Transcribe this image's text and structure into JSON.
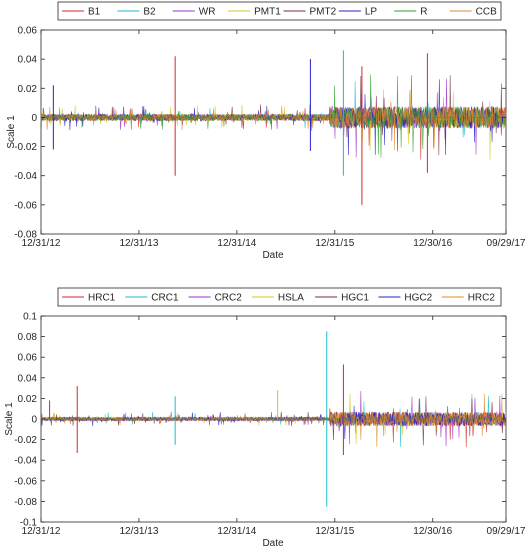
{
  "chart_data": [
    {
      "type": "line",
      "ylabel": "Scale 1",
      "xlabel": "Date",
      "ylim": [
        -0.08,
        0.06
      ],
      "yticks": [
        -0.08,
        -0.06,
        -0.04,
        -0.02,
        0,
        0.02,
        0.04,
        0.06
      ],
      "ytick_labels": [
        "-0.08",
        "-0.06",
        "-0.04",
        "-0.02",
        "0",
        "0.02",
        "0.04",
        "0.06"
      ],
      "xlim": [
        "12/31/12",
        "09/29/17"
      ],
      "xticks": [
        "12/31/12",
        "12/31/13",
        "12/31/14",
        "12/31/15",
        "12/30/16",
        "09/29/17"
      ],
      "legend_position": "top",
      "series": [
        {
          "name": "B1",
          "color": "#d62728"
        },
        {
          "name": "B2",
          "color": "#17becf"
        },
        {
          "name": "WR",
          "color": "#9b30c8"
        },
        {
          "name": "PMT1",
          "color": "#d4c61a"
        },
        {
          "name": "PMT2",
          "color": "#7a2a48"
        },
        {
          "name": "LP",
          "color": "#2424c8"
        },
        {
          "name": "R",
          "color": "#2ca02c"
        },
        {
          "name": "CCB",
          "color": "#e08a2a"
        }
      ],
      "spikes": [
        {
          "date": "05/15/14",
          "value": 0.042,
          "series": "B1"
        },
        {
          "date": "05/15/14",
          "value": -0.04,
          "series": "B1"
        },
        {
          "date": "10/01/15",
          "value": 0.04,
          "series": "LP"
        },
        {
          "date": "10/01/15",
          "value": -0.023,
          "series": "LP"
        },
        {
          "date": "02/01/16",
          "value": 0.046,
          "series": "B2"
        },
        {
          "date": "02/01/16",
          "value": -0.04,
          "series": "B2"
        },
        {
          "date": "04/10/16",
          "value": 0.035,
          "series": "B1"
        },
        {
          "date": "04/10/16",
          "value": -0.06,
          "series": "B1"
        },
        {
          "date": "12/10/16",
          "value": 0.044,
          "series": "B1"
        },
        {
          "date": "12/10/16",
          "value": -0.038,
          "series": "B1"
        },
        {
          "date": "02/15/13",
          "value": 0.022,
          "series": "LP"
        },
        {
          "date": "02/15/13",
          "value": -0.022,
          "series": "LP"
        }
      ]
    },
    {
      "type": "line",
      "ylabel": "Scale 1",
      "xlabel": "Date",
      "ylim": [
        -0.1,
        0.1
      ],
      "yticks": [
        -0.1,
        -0.08,
        -0.06,
        -0.04,
        -0.02,
        0,
        0.02,
        0.04,
        0.06,
        0.08,
        0.1
      ],
      "ytick_labels": [
        "-0.1",
        "-0.08",
        "-0.06",
        "-0.04",
        "-0.02",
        "0",
        "0.02",
        "0.04",
        "0.06",
        "0.08",
        "0.1"
      ],
      "xlim": [
        "12/31/12",
        "09/29/17"
      ],
      "xticks": [
        "12/31/12",
        "12/31/13",
        "12/31/14",
        "12/31/15",
        "12/30/16",
        "09/29/17"
      ],
      "legend_position": "top",
      "series": [
        {
          "name": "HRC1",
          "color": "#d62728"
        },
        {
          "name": "CRC1",
          "color": "#17becf"
        },
        {
          "name": "CRC2",
          "color": "#9b30c8"
        },
        {
          "name": "HSLA",
          "color": "#d4c61a"
        },
        {
          "name": "HGC1",
          "color": "#7a2a48"
        },
        {
          "name": "HGC2",
          "color": "#2424c8"
        },
        {
          "name": "HRC2",
          "color": "#e08a2a"
        }
      ],
      "spikes": [
        {
          "date": "12/01/15",
          "value": 0.085,
          "series": "CRC1"
        },
        {
          "date": "12/01/15",
          "value": -0.085,
          "series": "CRC1"
        },
        {
          "date": "02/01/16",
          "value": 0.053,
          "series": "HRC1"
        },
        {
          "date": "02/01/16",
          "value": -0.035,
          "series": "HRC1"
        },
        {
          "date": "05/15/13",
          "value": 0.032,
          "series": "HRC1"
        },
        {
          "date": "05/15/13",
          "value": -0.033,
          "series": "HRC1"
        },
        {
          "date": "05/15/14",
          "value": 0.022,
          "series": "CRC1"
        },
        {
          "date": "05/15/14",
          "value": -0.025,
          "series": "CRC1"
        },
        {
          "date": "06/01/15",
          "value": 0.028,
          "series": "HSLA"
        },
        {
          "date": "02/01/13",
          "value": 0.018,
          "series": "HRC1"
        }
      ]
    }
  ]
}
